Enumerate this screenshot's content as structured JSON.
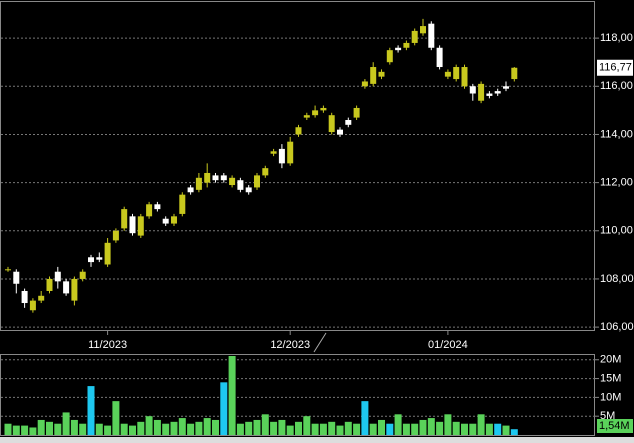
{
  "chart_data": {
    "type": "candlestick",
    "categories": [
      null,
      null,
      null,
      null,
      null,
      null,
      null,
      null,
      null,
      null,
      null,
      null,
      "11/2023",
      null,
      null,
      null,
      null,
      null,
      null,
      null,
      null,
      null,
      null,
      null,
      null,
      null,
      null,
      null,
      null,
      null,
      null,
      null,
      null,
      null,
      "12/2023",
      null,
      null,
      null,
      null,
      null,
      null,
      null,
      null,
      null,
      null,
      null,
      null,
      null,
      null,
      null,
      null,
      null,
      null,
      "01/2024",
      null,
      null,
      null,
      null,
      null,
      null,
      null,
      null
    ],
    "open": [
      108.4,
      108.3,
      107.5,
      106.7,
      107.1,
      107.5,
      108.3,
      107.9,
      107.1,
      108.0,
      108.9,
      108.9,
      108.6,
      109.6,
      110.1,
      110.6,
      109.8,
      110.6,
      111.1,
      110.5,
      110.3,
      110.7,
      111.8,
      111.7,
      112.0,
      112.3,
      112.3,
      111.9,
      112.1,
      111.8,
      111.8,
      112.3,
      113.2,
      113.4,
      112.8,
      114.0,
      114.7,
      114.8,
      115.0,
      114.1,
      114.2,
      114.6,
      114.7,
      116.0,
      116.1,
      116.4,
      117.0,
      117.6,
      117.6,
      117.8,
      118.2,
      118.6,
      117.6,
      116.4,
      116.3,
      116.0,
      116.0,
      115.4,
      115.7,
      115.8,
      116.0,
      116.3
    ],
    "high": [
      108.5,
      108.4,
      107.6,
      107.2,
      107.5,
      108.1,
      108.5,
      108.0,
      108.1,
      108.4,
      109.0,
      109.1,
      109.7,
      110.1,
      111.0,
      110.7,
      110.7,
      111.2,
      111.2,
      110.6,
      110.7,
      111.6,
      111.9,
      112.4,
      112.8,
      112.4,
      112.4,
      112.3,
      112.2,
      111.9,
      112.4,
      112.7,
      113.4,
      113.6,
      113.9,
      114.4,
      114.9,
      115.2,
      115.2,
      114.9,
      114.3,
      114.7,
      115.2,
      116.3,
      117.0,
      116.7,
      117.6,
      117.7,
      117.9,
      118.4,
      118.8,
      118.7,
      117.7,
      116.7,
      116.9,
      116.9,
      116.1,
      116.2,
      115.8,
      115.9,
      116.2,
      116.8
    ],
    "low": [
      108.3,
      107.4,
      106.8,
      106.6,
      107.0,
      107.4,
      107.6,
      107.3,
      106.9,
      107.9,
      108.5,
      108.7,
      108.5,
      109.5,
      110.0,
      109.8,
      109.7,
      110.5,
      110.8,
      110.2,
      110.2,
      110.6,
      111.5,
      111.6,
      111.8,
      112.0,
      112.0,
      111.8,
      111.6,
      111.5,
      111.7,
      112.2,
      113.1,
      112.6,
      112.7,
      113.9,
      114.6,
      114.7,
      114.9,
      114.0,
      113.9,
      114.3,
      114.6,
      115.9,
      116.0,
      116.3,
      116.9,
      117.4,
      117.5,
      117.7,
      118.1,
      117.5,
      116.7,
      116.3,
      116.2,
      115.9,
      115.4,
      115.3,
      115.5,
      115.6,
      115.8,
      116.2
    ],
    "close": [
      108.4,
      107.8,
      107.0,
      107.1,
      107.3,
      108.0,
      107.9,
      107.4,
      108.0,
      108.3,
      108.7,
      108.8,
      109.5,
      110.0,
      110.9,
      109.9,
      110.6,
      111.1,
      110.9,
      110.3,
      110.6,
      111.5,
      111.6,
      112.2,
      112.4,
      112.1,
      112.1,
      112.2,
      111.7,
      111.6,
      112.3,
      112.6,
      113.3,
      112.8,
      113.7,
      114.3,
      114.8,
      115.0,
      115.1,
      114.8,
      114.0,
      114.4,
      115.1,
      116.2,
      116.8,
      116.6,
      117.5,
      117.5,
      117.8,
      118.3,
      118.5,
      117.6,
      116.8,
      116.6,
      116.8,
      116.8,
      115.7,
      116.1,
      115.6,
      115.7,
      115.9,
      116.77
    ],
    "up_color": "#c8c81e",
    "down_color": "#ffffff",
    "last_price": {
      "value": 116.77,
      "label": "116,77"
    },
    "ylim": [
      105.88,
      119.5
    ],
    "yticks": [
      {
        "value": 106,
        "label": "106,00"
      },
      {
        "value": 108,
        "label": "108,00"
      },
      {
        "value": 110,
        "label": "110,00"
      },
      {
        "value": 112,
        "label": "112,00"
      },
      {
        "value": 114,
        "label": "114,00"
      },
      {
        "value": 116,
        "label": "116,00"
      },
      {
        "value": 118,
        "label": "118,00"
      }
    ],
    "grid": true,
    "volume": {
      "values": [
        3,
        2.5,
        2.5,
        2,
        4,
        3.5,
        3,
        6,
        4,
        3,
        13,
        3,
        2.5,
        9,
        3,
        2.5,
        3.5,
        5,
        4,
        3,
        3.5,
        4.5,
        3,
        3.5,
        4.5,
        4,
        14,
        21,
        3,
        3.5,
        4,
        5.5,
        3.5,
        4,
        2.5,
        3.5,
        5,
        3,
        3,
        3.5,
        2.5,
        3.5,
        3,
        9,
        3,
        4,
        3,
        5.5,
        3,
        3,
        4,
        4.5,
        3.5,
        5.5,
        3.5,
        3,
        3,
        5.5,
        3,
        3,
        2.5,
        1.54
      ],
      "colors": [
        "#5ad25a",
        "#5ad25a",
        "#5ad25a",
        "#5ad25a",
        "#5ad25a",
        "#5ad25a",
        "#5ad25a",
        "#5ad25a",
        "#5ad25a",
        "#5ad25a",
        "#1ec8f0",
        "#5ad25a",
        "#5ad25a",
        "#5ad25a",
        "#5ad25a",
        "#5ad25a",
        "#5ad25a",
        "#5ad25a",
        "#5ad25a",
        "#5ad25a",
        "#5ad25a",
        "#5ad25a",
        "#5ad25a",
        "#5ad25a",
        "#5ad25a",
        "#5ad25a",
        "#1ec8f0",
        "#5ad25a",
        "#5ad25a",
        "#5ad25a",
        "#5ad25a",
        "#5ad25a",
        "#5ad25a",
        "#5ad25a",
        "#5ad25a",
        "#5ad25a",
        "#5ad25a",
        "#5ad25a",
        "#5ad25a",
        "#5ad25a",
        "#5ad25a",
        "#5ad25a",
        "#5ad25a",
        "#1ec8f0",
        "#5ad25a",
        "#5ad25a",
        "#1ec8f0",
        "#5ad25a",
        "#5ad25a",
        "#5ad25a",
        "#5ad25a",
        "#5ad25a",
        "#5ad25a",
        "#5ad25a",
        "#5ad25a",
        "#5ad25a",
        "#5ad25a",
        "#5ad25a",
        "#5ad25a",
        "#1ec8f0",
        "#5ad25a",
        "#1ec8f0"
      ],
      "last_volume": {
        "value": 1.54,
        "label": "1,54M"
      },
      "ylim": [
        0,
        21
      ],
      "yticks": [
        {
          "value": 5,
          "label": "5M"
        },
        {
          "value": 10,
          "label": "10M"
        },
        {
          "value": 15,
          "label": "15M"
        },
        {
          "value": 20,
          "label": "20M"
        }
      ]
    }
  }
}
